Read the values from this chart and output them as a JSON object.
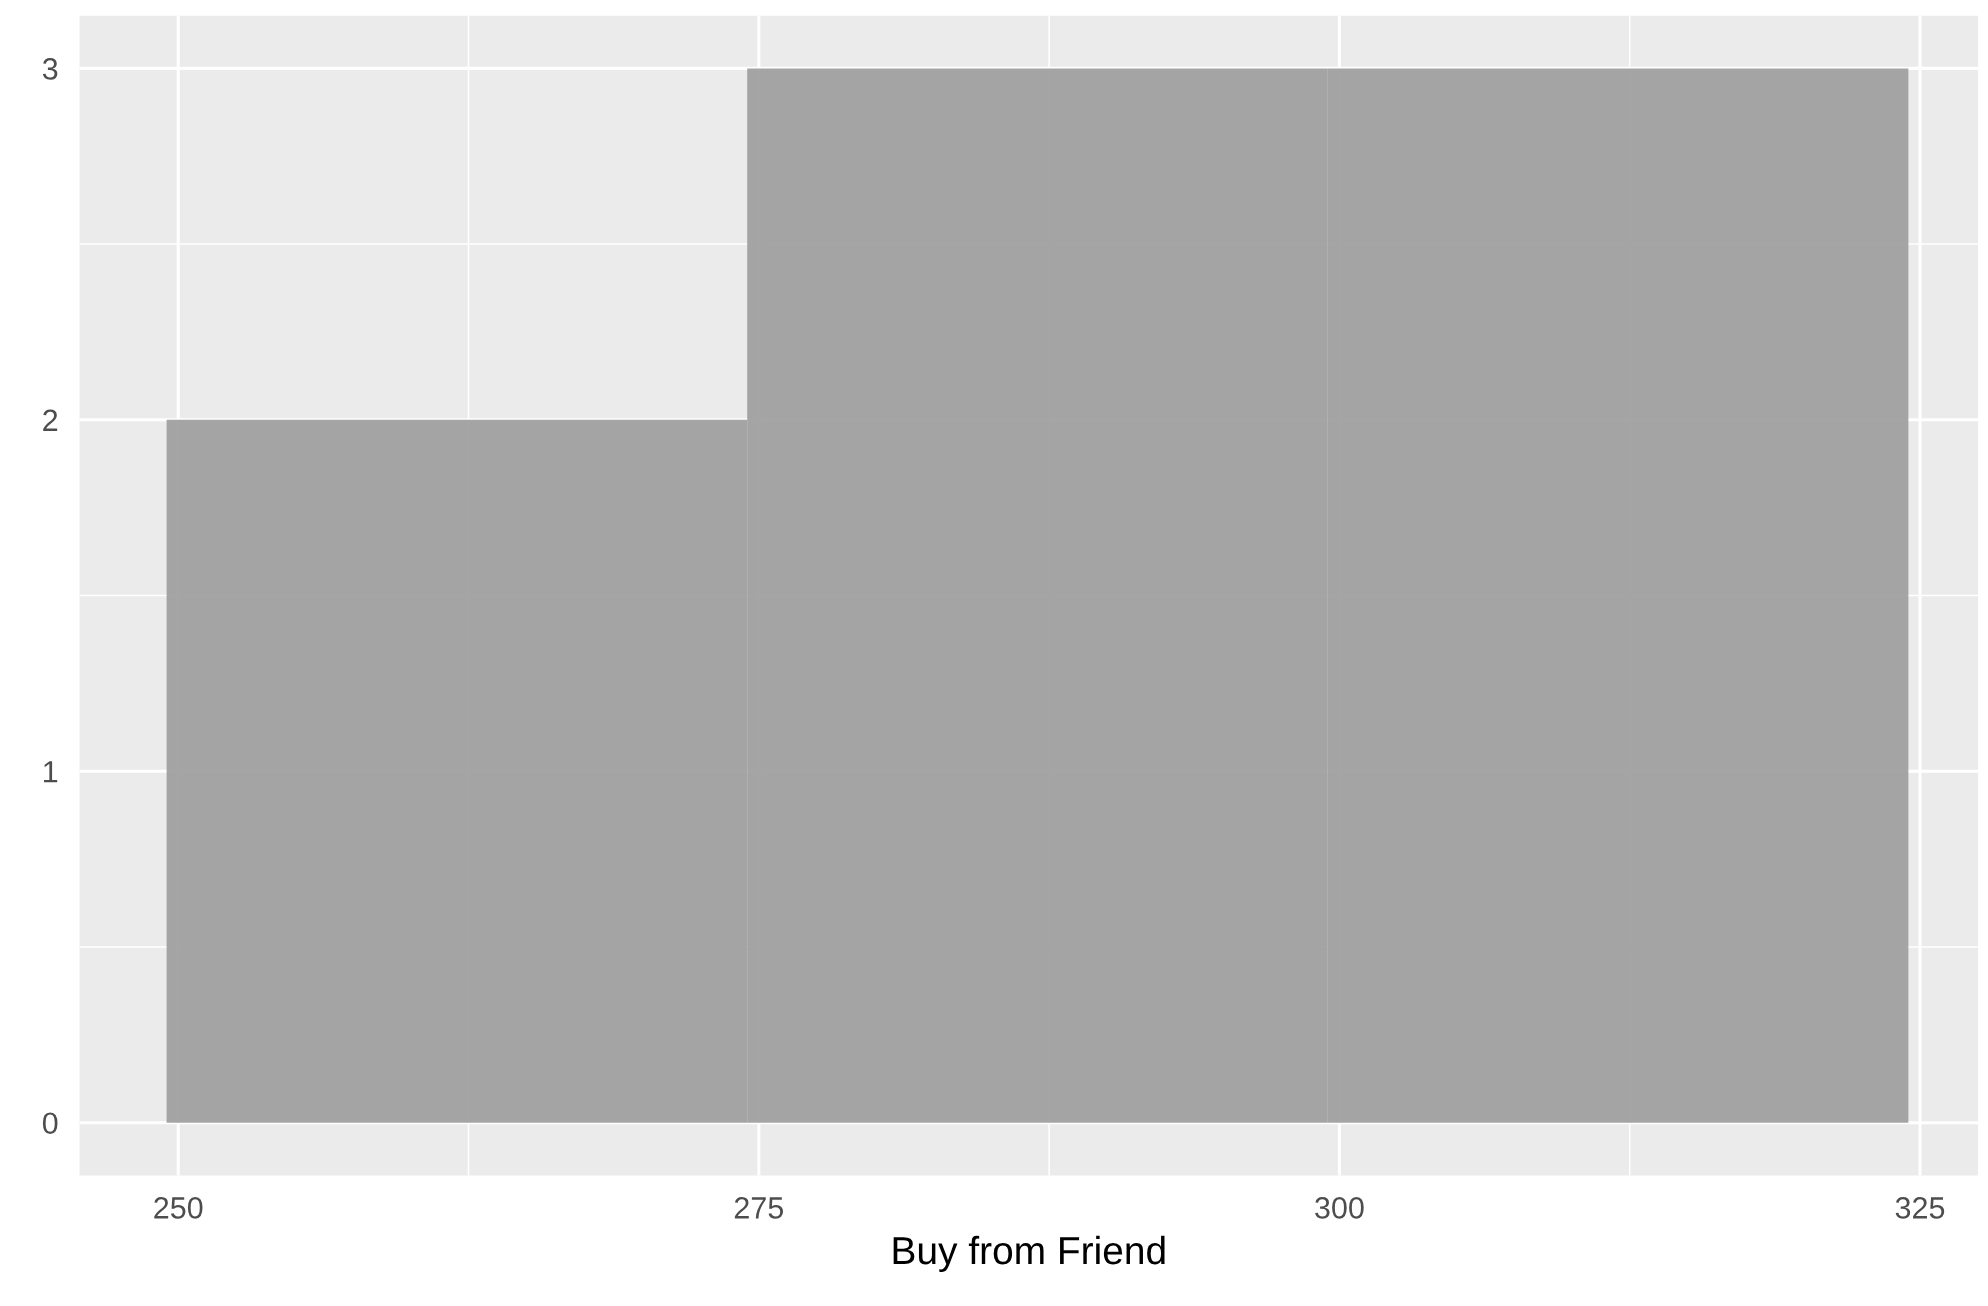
{
  "chart_data": {
    "type": "histogram",
    "xlabel": "Buy from Friend",
    "bins": [
      249.5,
      274.5,
      299.5,
      324.5
    ],
    "values": [
      2,
      3,
      3
    ],
    "color": "#a0a0a0",
    "xlim": [
      245.75,
      327.5
    ],
    "xticks": [
      250,
      275,
      300,
      325
    ],
    "ylim": [
      -0.15,
      3.15
    ],
    "yticks": [
      0,
      1,
      2,
      3
    ],
    "grid": true
  }
}
